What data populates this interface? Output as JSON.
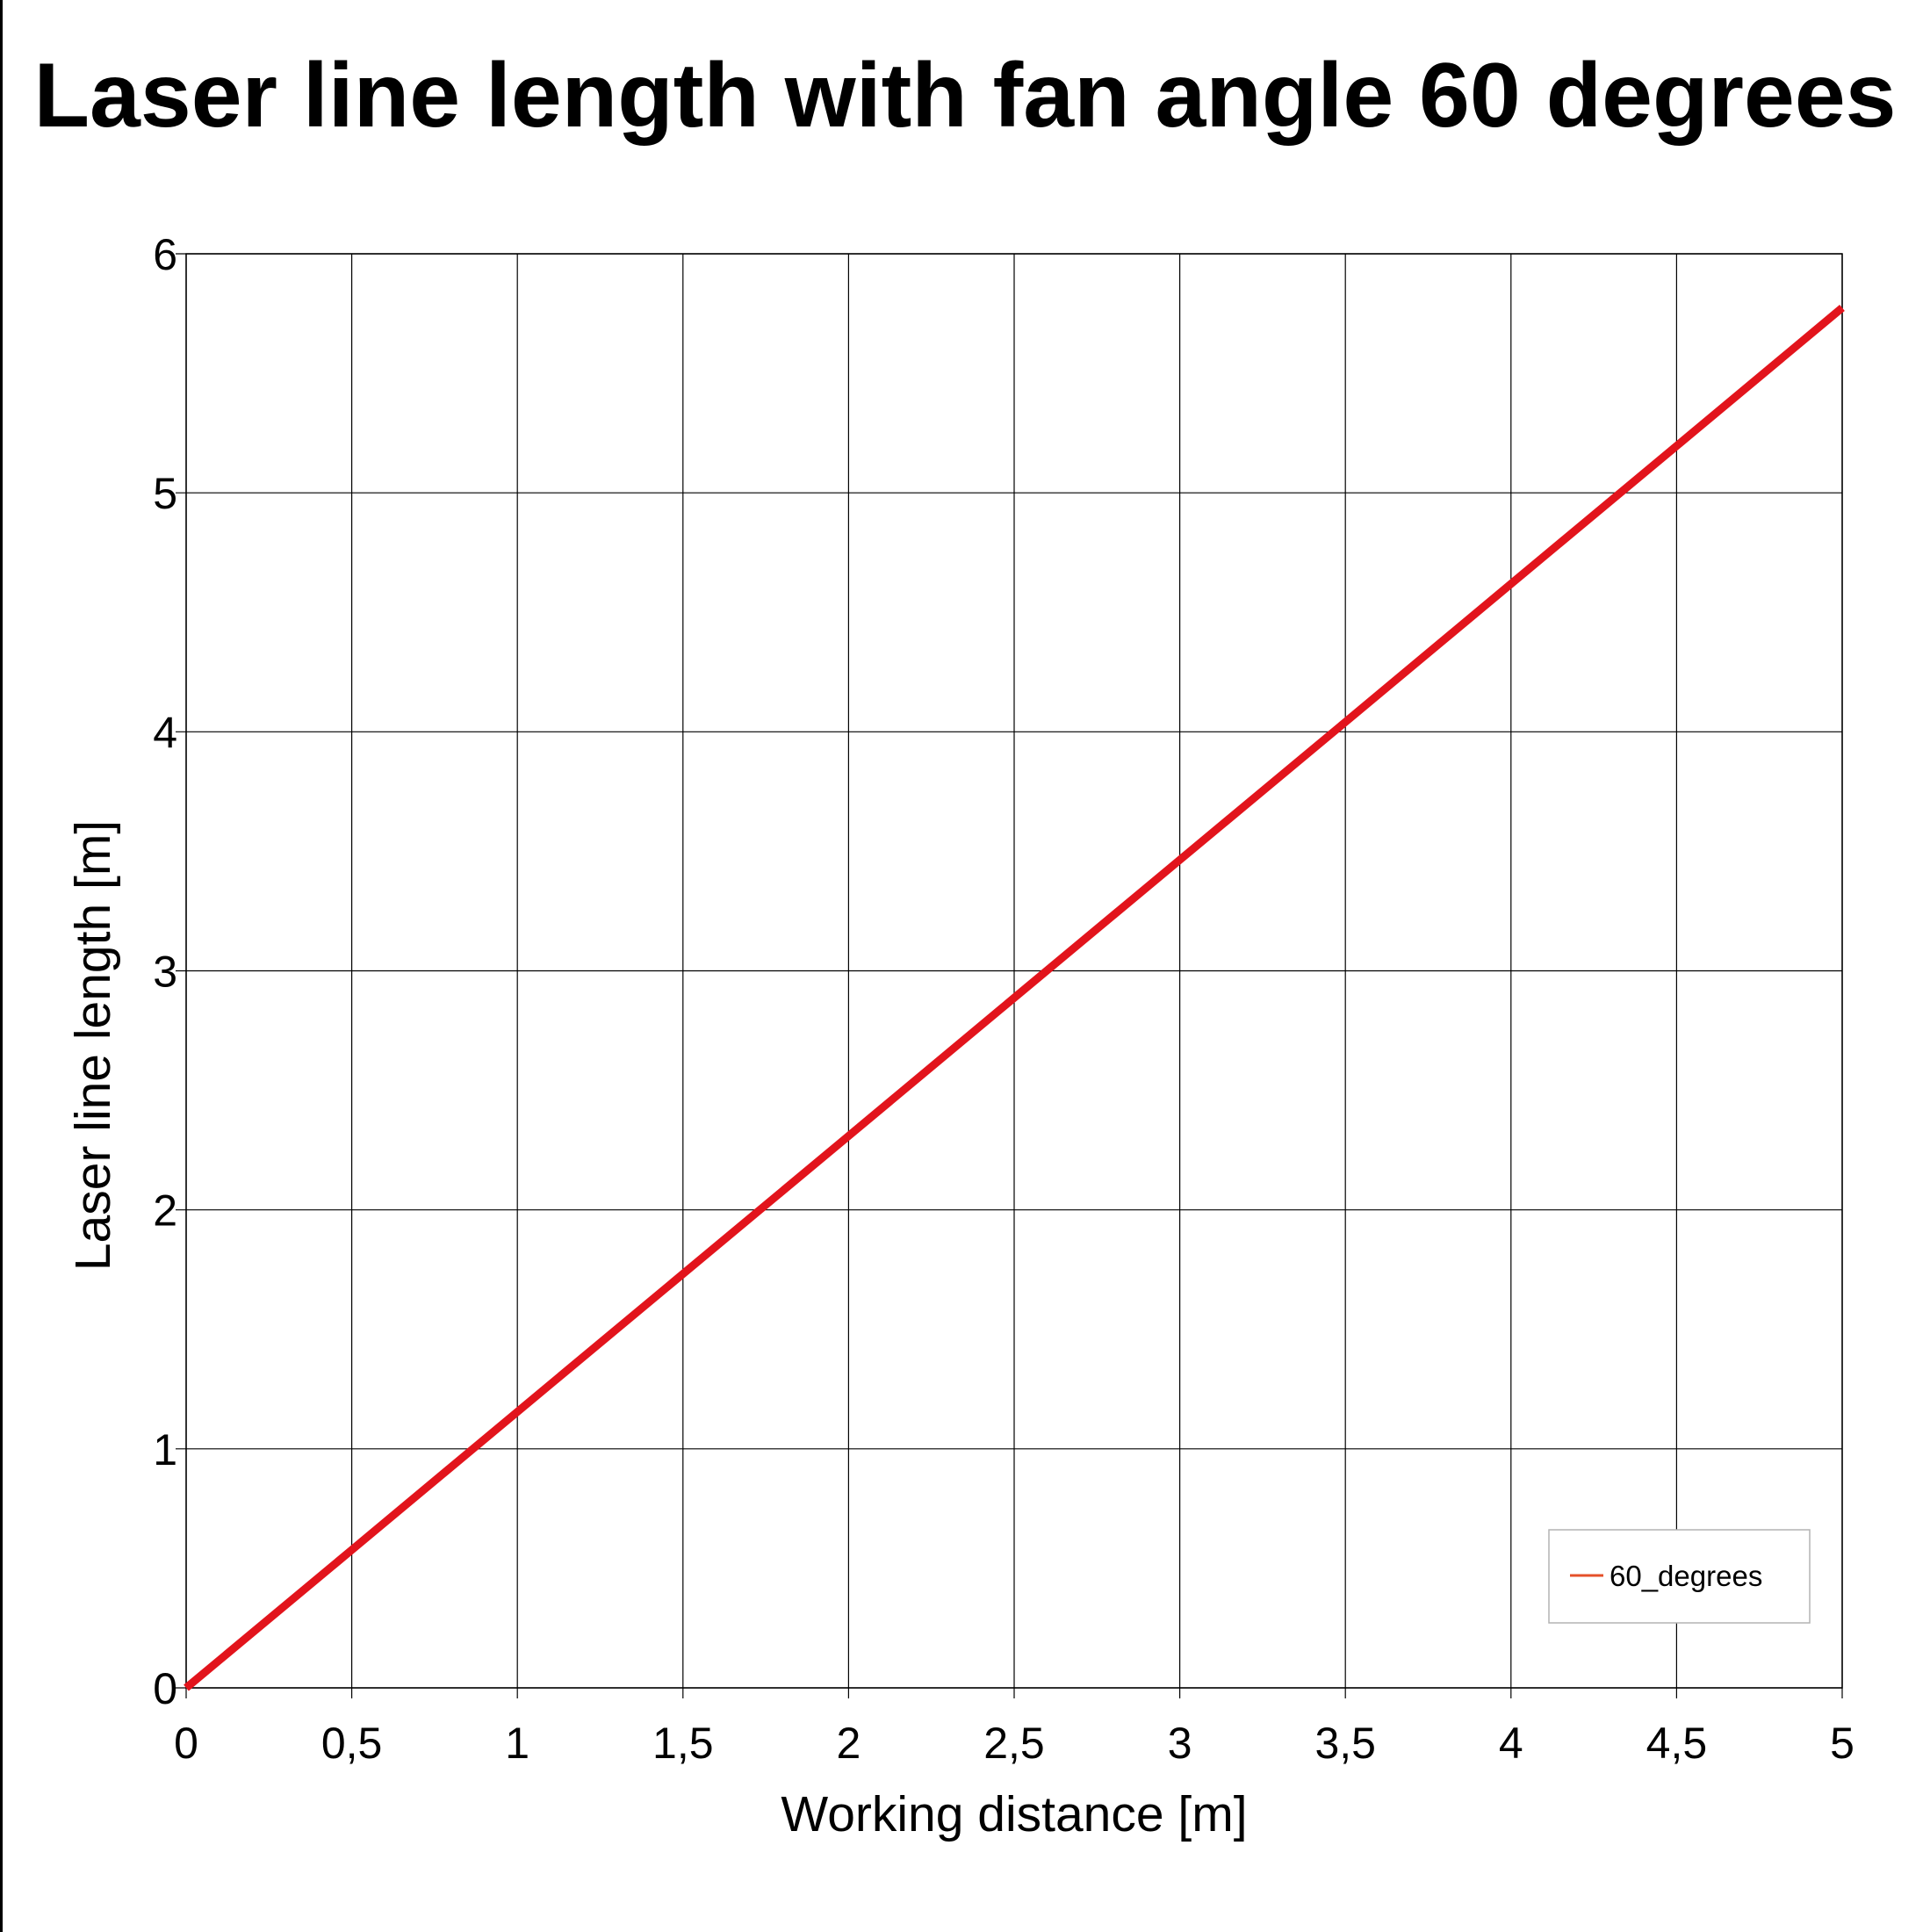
{
  "chart_data": {
    "type": "line",
    "title": "Laser line length with fan angle 60 degrees",
    "xlabel": "Working distance [m]",
    "ylabel": "Laser line length [m]",
    "xlim": [
      0,
      5
    ],
    "ylim": [
      0,
      6
    ],
    "x_ticks": [
      "0",
      "0,5",
      "1",
      "1,5",
      "2",
      "2,5",
      "3",
      "3,5",
      "4",
      "4,5",
      "5"
    ],
    "x_tick_values": [
      0,
      0.5,
      1,
      1.5,
      2,
      2.5,
      3,
      3.5,
      4,
      4.5,
      5
    ],
    "y_ticks": [
      "0",
      "1",
      "2",
      "3",
      "4",
      "5",
      "6"
    ],
    "y_tick_values": [
      0,
      1,
      2,
      3,
      4,
      5,
      6
    ],
    "grid": true,
    "legend_position": "bottom-right",
    "series": [
      {
        "name": "60_degrees",
        "color": "#e2141c",
        "legend_color": "#e5502a",
        "x": [
          0,
          0.5,
          1,
          1.5,
          2,
          2.5,
          3,
          3.5,
          4,
          4.5,
          5
        ],
        "values": [
          0,
          0.577,
          1.155,
          1.732,
          2.309,
          2.887,
          3.464,
          4.041,
          4.619,
          5.196,
          5.774
        ]
      }
    ]
  }
}
